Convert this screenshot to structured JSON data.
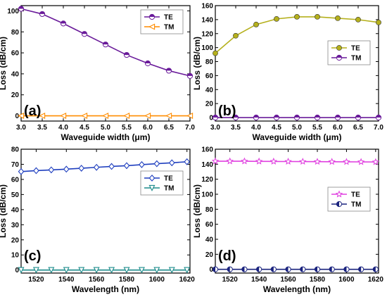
{
  "chart_data": [
    {
      "id": "a",
      "type": "line",
      "panel_label": "(a)",
      "xlabel": "Waveguide width (μm)",
      "ylabel": "Loss (dB/cm)",
      "xlim": [
        3.0,
        7.0
      ],
      "ylim": [
        -5,
        105
      ],
      "xticks": [
        3.0,
        3.5,
        4.0,
        4.5,
        5.0,
        5.5,
        6.0,
        6.5,
        7.0
      ],
      "xtick_labels": [
        "3.0",
        "3.5",
        "4.0",
        "4.5",
        "5.0",
        "5.5",
        "6.0",
        "6.5",
        "7.0"
      ],
      "yticks": [
        0,
        20,
        40,
        60,
        80,
        100
      ],
      "ytick_labels": [
        "0",
        "20",
        "40",
        "60",
        "80",
        "100"
      ],
      "legend_position": "top-right",
      "grid": false,
      "x": [
        3.0,
        3.5,
        4.0,
        4.5,
        5.0,
        5.5,
        6.0,
        6.5,
        7.0
      ],
      "series": [
        {
          "name": "TE",
          "color": "#6a1b9a",
          "marker": "circle-half",
          "values": [
            102,
            97,
            88,
            78,
            68,
            58,
            50,
            43,
            38
          ]
        },
        {
          "name": "TM",
          "color": "#ff8c00",
          "marker": "triangle-left",
          "values": [
            0,
            0,
            0,
            0,
            0,
            0,
            0,
            0,
            0
          ]
        }
      ]
    },
    {
      "id": "b",
      "type": "line",
      "panel_label": "(b)",
      "xlabel": "Waveguide width (μm)",
      "ylabel": "Loss (dB/cm)",
      "xlim": [
        3.0,
        7.0
      ],
      "ylim": [
        -5,
        160
      ],
      "xticks": [
        3.0,
        3.5,
        4.0,
        4.5,
        5.0,
        5.5,
        6.0,
        6.5,
        7.0
      ],
      "xtick_labels": [
        "3.0",
        "3.5",
        "4.0",
        "4.5",
        "5.0",
        "5.5",
        "6.0",
        "6.5",
        "7.0"
      ],
      "yticks": [
        0,
        20,
        40,
        60,
        80,
        100,
        120,
        140,
        160
      ],
      "ytick_labels": [
        "0",
        "20",
        "40",
        "60",
        "80",
        "100",
        "120",
        "140",
        "160"
      ],
      "legend_position": "center-right",
      "grid": false,
      "x": [
        3.0,
        3.5,
        4.0,
        4.5,
        5.0,
        5.5,
        6.0,
        6.5,
        7.0
      ],
      "series": [
        {
          "name": "TE",
          "color": "#b5b01c",
          "marker": "circle",
          "values": [
            92,
            117,
            133,
            141,
            144,
            144,
            142,
            140,
            136
          ]
        },
        {
          "name": "TM",
          "color": "#6a1b9a",
          "marker": "circle-half",
          "values": [
            0,
            0,
            0,
            0,
            0,
            0,
            0,
            0,
            0
          ]
        }
      ]
    },
    {
      "id": "c",
      "type": "line",
      "panel_label": "(c)",
      "xlabel": "Wavelength (nm)",
      "ylabel": "Loss (dB/cm)",
      "xlim": [
        1510,
        1622
      ],
      "ylim": [
        -2,
        80
      ],
      "xticks": [
        1520,
        1540,
        1560,
        1580,
        1600,
        1620
      ],
      "xtick_labels": [
        "1520",
        "1540",
        "1560",
        "1580",
        "1600",
        "1620"
      ],
      "yticks": [
        0,
        10,
        20,
        30,
        40,
        50,
        60,
        70,
        80
      ],
      "ytick_labels": [
        "0",
        "10",
        "20",
        "30",
        "40",
        "50",
        "60",
        "70",
        "80"
      ],
      "legend_position": "top-right",
      "grid": false,
      "x": [
        1510,
        1520,
        1530,
        1540,
        1550,
        1560,
        1570,
        1580,
        1590,
        1600,
        1610,
        1620
      ],
      "series": [
        {
          "name": "TE",
          "color": "#1f3fbf",
          "marker": "diamond",
          "values": [
            65.2,
            65.8,
            66.3,
            66.8,
            67.4,
            68.0,
            68.6,
            69.1,
            69.8,
            70.4,
            71.0,
            71.7
          ]
        },
        {
          "name": "TM",
          "color": "#1e8c8c",
          "marker": "triangle-down",
          "values": [
            0,
            0,
            0,
            0,
            0,
            0,
            0,
            0,
            0,
            0,
            0,
            0
          ]
        }
      ]
    },
    {
      "id": "d",
      "type": "line",
      "panel_label": "(d)",
      "xlabel": "Wavelength (nm)",
      "ylabel": "Loss (dB/cm)",
      "xlim": [
        1510,
        1622
      ],
      "ylim": [
        -5,
        160
      ],
      "xticks": [
        1520,
        1540,
        1560,
        1580,
        1600,
        1620
      ],
      "xtick_labels": [
        "1520",
        "1540",
        "1560",
        "1580",
        "1600",
        "1620"
      ],
      "yticks": [
        0,
        20,
        40,
        60,
        80,
        100,
        120,
        140,
        160
      ],
      "ytick_labels": [
        "0",
        "20",
        "40",
        "60",
        "80",
        "100",
        "120",
        "140",
        "160"
      ],
      "legend_position": "center-right",
      "grid": false,
      "x": [
        1510,
        1520,
        1530,
        1540,
        1550,
        1560,
        1570,
        1580,
        1590,
        1600,
        1610,
        1620
      ],
      "series": [
        {
          "name": "TE",
          "color": "#e040e0",
          "marker": "star",
          "values": [
            144,
            144,
            144,
            143.8,
            143.7,
            143.6,
            143.5,
            143.4,
            143.3,
            143.2,
            143.1,
            143
          ]
        },
        {
          "name": "TM",
          "color": "#1a237e",
          "marker": "circle-half-left",
          "values": [
            0,
            0,
            0,
            0,
            0,
            0,
            0,
            0,
            0,
            0,
            0,
            0
          ]
        }
      ]
    }
  ]
}
